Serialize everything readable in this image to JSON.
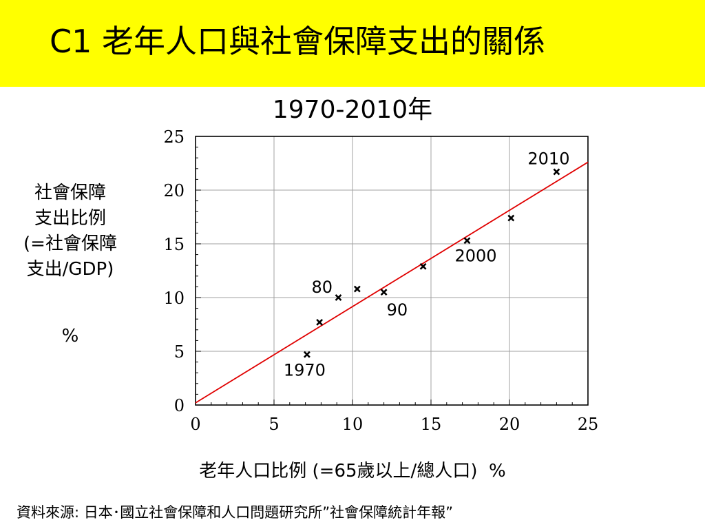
{
  "slide": {
    "title": "C1  老年人口與社會保障支出的關係",
    "band_color": "#ffff00",
    "source": "資料來源:  日本･國立社會保障和人口問題研究所”社會保障統計年報”"
  },
  "chart_data": {
    "type": "scatter",
    "title": "1970-2010年",
    "xlabel": "老年人口比例 (=65歲以上/總人口)  %",
    "ylabel": "社會保障\n支出比例\n(=社會保障\n支出/GDP)",
    "ylabel_unit": "%",
    "xlim": [
      0,
      25
    ],
    "ylim": [
      0,
      25
    ],
    "xticks": [
      "0",
      "5",
      "10",
      "15",
      "20",
      "25"
    ],
    "yticks": [
      "0",
      "5",
      "10",
      "15",
      "20",
      "25"
    ],
    "grid": true,
    "marker": "x",
    "marker_color": "#000000",
    "points": [
      {
        "x": 7.1,
        "y": 4.7
      },
      {
        "x": 7.9,
        "y": 7.7
      },
      {
        "x": 9.1,
        "y": 10.0
      },
      {
        "x": 10.3,
        "y": 10.8
      },
      {
        "x": 12.0,
        "y": 10.5
      },
      {
        "x": 14.5,
        "y": 12.9
      },
      {
        "x": 17.3,
        "y": 15.3
      },
      {
        "x": 20.1,
        "y": 17.4
      },
      {
        "x": 23.0,
        "y": 21.7
      }
    ],
    "trendline": {
      "color": "#e00000",
      "x": [
        0,
        25
      ],
      "y": [
        0.2,
        22.6
      ]
    },
    "annotations": [
      {
        "text": "1970",
        "x": 7.1,
        "y": 4.7
      },
      {
        "text": "80",
        "x": 9.1,
        "y": 10.0
      },
      {
        "text": "90",
        "x": 12.0,
        "y": 10.5
      },
      {
        "text": "2000",
        "x": 17.3,
        "y": 15.3
      },
      {
        "text": "2010",
        "x": 23.0,
        "y": 21.7
      }
    ]
  }
}
